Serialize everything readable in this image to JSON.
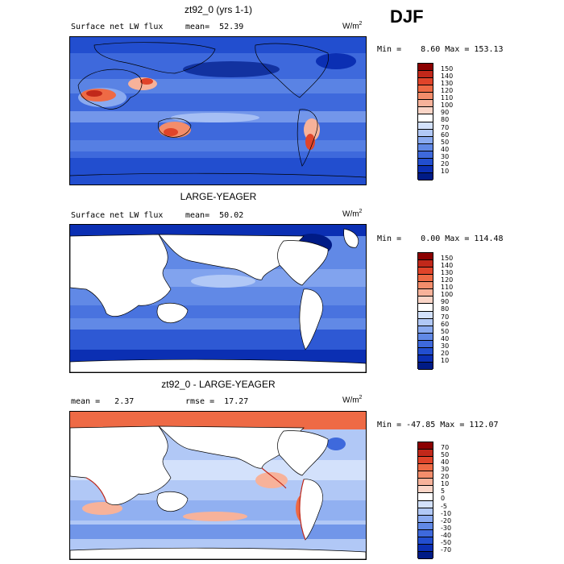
{
  "season": "DJF",
  "units": {
    "base": "W/m",
    "exp": "2"
  },
  "panels": [
    {
      "title": "zt92_0 (yrs 1-1)",
      "left_text": "Surface net LW flux",
      "stat_text": "mean=  52.39",
      "minmax": "Min =    8.60 Max = 153.13",
      "levels": [
        "150",
        "140",
        "130",
        "120",
        "110",
        "100",
        "90",
        "80",
        "70",
        "60",
        "50",
        "40",
        "30",
        "20",
        "10"
      ],
      "colors": [
        "#8b0000",
        "#c1281a",
        "#e0442a",
        "#ee6a45",
        "#f38d6b",
        "#f7b29a",
        "#fad5c7",
        "#ffffff",
        "#d3e1fb",
        "#b1c8f6",
        "#8aaaf0",
        "#6189e6",
        "#3e69dc",
        "#224ecf",
        "#0b2fb3",
        "#001b86"
      ]
    },
    {
      "title": "LARGE-YEAGER",
      "left_text": "Surface net LW flux",
      "stat_text": "mean=  50.02",
      "minmax": "Min =    0.00 Max = 114.48",
      "levels": [
        "150",
        "140",
        "130",
        "120",
        "110",
        "100",
        "90",
        "80",
        "70",
        "60",
        "50",
        "40",
        "30",
        "20",
        "10"
      ],
      "colors": [
        "#8b0000",
        "#c1281a",
        "#e0442a",
        "#ee6a45",
        "#f38d6b",
        "#f7b29a",
        "#fad5c7",
        "#ffffff",
        "#d3e1fb",
        "#b1c8f6",
        "#8aaaf0",
        "#6189e6",
        "#3e69dc",
        "#224ecf",
        "#0b2fb3",
        "#001b86"
      ]
    },
    {
      "title": "zt92_0 - LARGE-YEAGER",
      "left_text": "mean =   2.37",
      "stat_text": "rmse =  17.27",
      "minmax": "Min = -47.85 Max = 112.07",
      "levels": [
        "70",
        "50",
        "40",
        "30",
        "20",
        "10",
        "5",
        "0",
        "-5",
        "-10",
        "-20",
        "-30",
        "-40",
        "-50",
        "-70"
      ],
      "colors": [
        "#8b0000",
        "#c1281a",
        "#e0442a",
        "#ee6a45",
        "#f38d6b",
        "#f7b29a",
        "#fad5c7",
        "#ffffff",
        "#d3e1fb",
        "#b1c8f6",
        "#8aaaf0",
        "#6189e6",
        "#3e69dc",
        "#224ecf",
        "#0b2fb3",
        "#001b86"
      ]
    }
  ]
}
